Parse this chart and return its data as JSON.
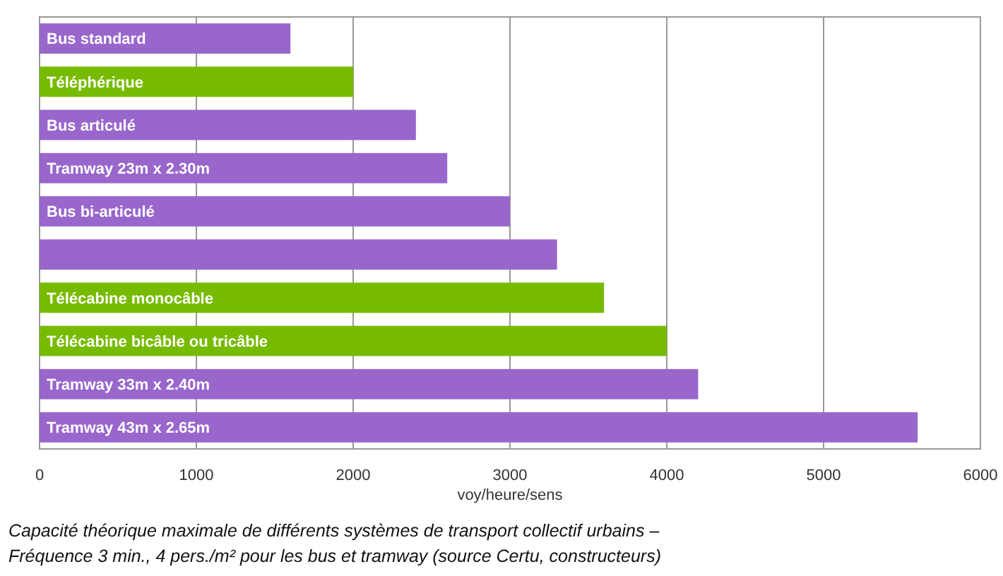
{
  "chart_data": {
    "type": "bar",
    "orientation": "horizontal",
    "categories": [
      "Bus standard",
      "Téléphérique",
      "Bus articulé",
      "Tramway 23m x 2.30m",
      "Bus bi-articulé",
      null,
      "Télécabine monocâble",
      "Télécabine bicâble ou tricâble",
      "Tramway 33m x 2.40m",
      "Tramway 43m x 2.65m"
    ],
    "values": [
      1600,
      2000,
      2400,
      2600,
      3000,
      3300,
      3600,
      4000,
      4200,
      5600
    ],
    "colors": [
      "#9966cc",
      "#77bb00",
      "#9966cc",
      "#9966cc",
      "#9966cc",
      "#9966cc",
      "#77bb00",
      "#77bb00",
      "#9966cc",
      "#9966cc"
    ],
    "xlim": [
      0,
      6000
    ],
    "xticks": [
      0,
      1000,
      2000,
      3000,
      4000,
      5000,
      6000
    ],
    "xlabel": "voy/heure/sens",
    "grid": "x",
    "annotations": [
      "Capacité théorique maximale de différents systèmes de transport collectif urbains –",
      "Fréquence 3 min., 4 pers./m² pour les bus et tramway (source Certu, constructeurs)"
    ]
  }
}
